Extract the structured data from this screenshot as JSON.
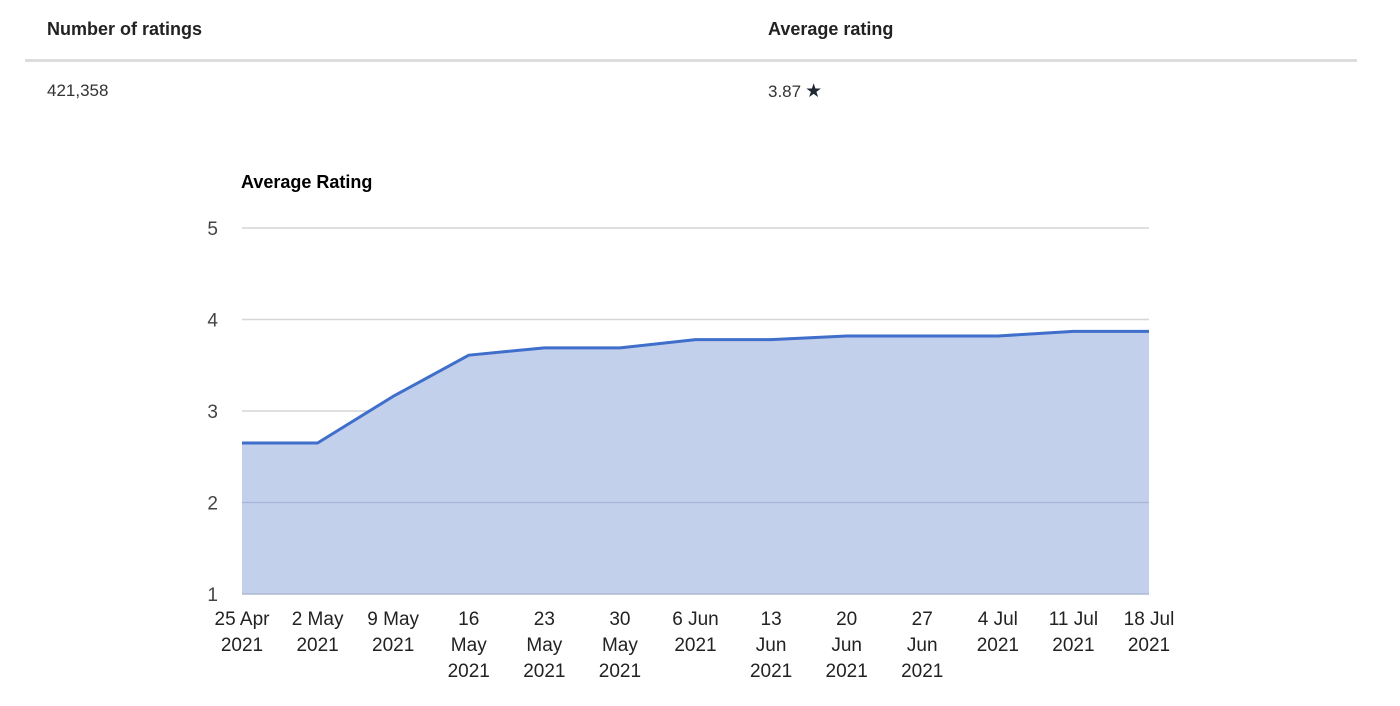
{
  "stats": {
    "headers": {
      "count": "Number of ratings",
      "average": "Average rating"
    },
    "values": {
      "count": "421,358",
      "average": "3.87"
    },
    "star_icon": "★"
  },
  "chart_data": {
    "type": "area",
    "title": "Average Rating",
    "xlabel": "",
    "ylabel": "",
    "ylim": [
      1,
      5
    ],
    "yticks": [
      1,
      2,
      3,
      4,
      5
    ],
    "grid": true,
    "legend": "none",
    "categories": [
      "25 Apr 2021",
      "2 May 2021",
      "9 May 2021",
      "16 May 2021",
      "23 May 2021",
      "30 May 2021",
      "6 Jun 2021",
      "13 Jun 2021",
      "20 Jun 2021",
      "27 Jun 2021",
      "4 Jul 2021",
      "11 Jul 2021",
      "18 Jul 2021"
    ],
    "category_label_lines": [
      [
        "25 Apr",
        "2021"
      ],
      [
        "2 May",
        "2021"
      ],
      [
        "9 May",
        "2021"
      ],
      [
        "16",
        "May",
        "2021"
      ],
      [
        "23",
        "May",
        "2021"
      ],
      [
        "30",
        "May",
        "2021"
      ],
      [
        "6 Jun",
        "2021"
      ],
      [
        "13",
        "Jun",
        "2021"
      ],
      [
        "20",
        "Jun",
        "2021"
      ],
      [
        "27",
        "Jun",
        "2021"
      ],
      [
        "4 Jul",
        "2021"
      ],
      [
        "11 Jul",
        "2021"
      ],
      [
        "18 Jul",
        "2021"
      ]
    ],
    "series": [
      {
        "name": "Average Rating",
        "values": [
          2.65,
          2.65,
          3.16,
          3.61,
          3.69,
          3.69,
          3.78,
          3.78,
          3.82,
          3.82,
          3.82,
          3.87,
          3.87
        ]
      }
    ],
    "colors": {
      "line": "#3f6ecb",
      "fill": "#c3d0ec",
      "grid": "#d6d6d6",
      "grid_over_fill": "#9aaacb"
    }
  }
}
